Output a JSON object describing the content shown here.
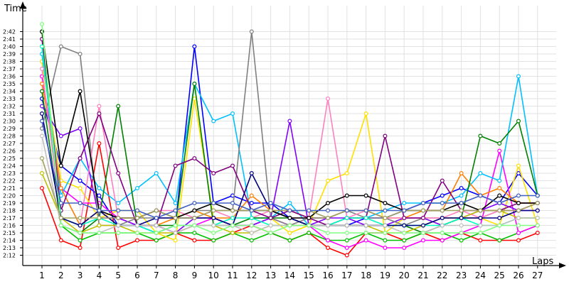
{
  "chart_data": {
    "type": "line",
    "ylabel": "Time",
    "xlabel": "Laps",
    "x": [
      1,
      2,
      3,
      4,
      5,
      6,
      7,
      8,
      9,
      10,
      11,
      12,
      13,
      14,
      15,
      16,
      17,
      18,
      19,
      20,
      21,
      22,
      23,
      24,
      25,
      26,
      27
    ],
    "y_ticks": [
      "2:12",
      "2:13",
      "2:14",
      "2:15",
      "2:16",
      "2:17",
      "2:18",
      "2:19",
      "2:20",
      "2:21",
      "2:22",
      "2:23",
      "2:24",
      "2:25",
      "2:26",
      "2:27",
      "2:28",
      "2:29",
      "2:30",
      "2:31",
      "2:32",
      "2:33",
      "2:34",
      "2:35",
      "2:36",
      "2:37",
      "2:38",
      "2:39",
      "2:40",
      "2:41",
      "2:42"
    ],
    "y_unit": "seconds",
    "ylim": [
      131,
      163
    ],
    "grid": true,
    "legend": "none",
    "series": [
      {
        "color": "#ff0000",
        "values": [
          141,
          134,
          133,
          147,
          133,
          134,
          134,
          135,
          134,
          134,
          135,
          136,
          135,
          134,
          135,
          133,
          132,
          135,
          135,
          134,
          135,
          134,
          135,
          134,
          134,
          134,
          135
        ]
      },
      {
        "color": "#00c000",
        "values": [
          162,
          136,
          134,
          135,
          135,
          135,
          134,
          135,
          135,
          134,
          135,
          134,
          135,
          134,
          135,
          134,
          134,
          135,
          134,
          134,
          135,
          135,
          134,
          135,
          134,
          135,
          136
        ]
      },
      {
        "color": "#0000ff",
        "values": [
          153,
          144,
          142,
          140,
          136,
          136,
          135,
          136,
          160,
          139,
          140,
          139,
          139,
          137,
          136,
          136,
          136,
          137,
          137,
          138,
          139,
          140,
          141,
          140,
          139,
          143,
          140
        ]
      },
      {
        "color": "#ffe000",
        "values": [
          158,
          142,
          141,
          137,
          138,
          138,
          135,
          134,
          153,
          137,
          136,
          136,
          137,
          135,
          136,
          142,
          143,
          151,
          135,
          137,
          137,
          136,
          137,
          137,
          136,
          144,
          136
        ]
      },
      {
        "color": "#ff00ff",
        "values": [
          156,
          141,
          139,
          139,
          137,
          136,
          136,
          135,
          136,
          137,
          136,
          136,
          137,
          136,
          136,
          134,
          133,
          134,
          133,
          133,
          134,
          134,
          135,
          136,
          146,
          135,
          136
        ]
      },
      {
        "color": "#00c0ff",
        "values": [
          159,
          140,
          145,
          141,
          139,
          141,
          143,
          139,
          155,
          150,
          151,
          137,
          137,
          139,
          136,
          136,
          137,
          137,
          138,
          139,
          139,
          139,
          140,
          143,
          142,
          156,
          140
        ]
      },
      {
        "color": "#8000ff",
        "values": [
          152,
          148,
          149,
          137,
          137,
          136,
          136,
          135,
          137,
          137,
          136,
          136,
          137,
          150,
          136,
          137,
          137,
          136,
          136,
          137,
          137,
          136,
          137,
          138,
          139,
          138,
          138
        ]
      },
      {
        "color": "#ff8000",
        "values": [
          155,
          141,
          136,
          138,
          136,
          136,
          136,
          137,
          138,
          137,
          137,
          140,
          138,
          138,
          137,
          137,
          138,
          138,
          137,
          137,
          138,
          138,
          143,
          140,
          141,
          139,
          139
        ]
      },
      {
        "color": "#808080",
        "values": [
          149,
          160,
          159,
          136,
          136,
          137,
          137,
          137,
          138,
          138,
          138,
          162,
          137,
          136,
          137,
          137,
          138,
          137,
          137,
          136,
          137,
          137,
          137,
          137,
          138,
          138,
          139
        ]
      },
      {
        "color": "#ff80c0",
        "values": [
          157,
          137,
          136,
          152,
          137,
          137,
          138,
          138,
          137,
          138,
          137,
          137,
          138,
          137,
          137,
          153,
          137,
          138,
          137,
          137,
          137,
          137,
          138,
          137,
          138,
          138,
          139
        ]
      },
      {
        "color": "#008000",
        "values": [
          154,
          136,
          135,
          137,
          152,
          136,
          136,
          136,
          155,
          136,
          136,
          137,
          137,
          137,
          136,
          136,
          136,
          136,
          136,
          136,
          135,
          136,
          137,
          148,
          147,
          150,
          140
        ]
      },
      {
        "color": "#800080",
        "values": [
          161,
          138,
          145,
          151,
          143,
          136,
          136,
          144,
          145,
          143,
          144,
          138,
          137,
          138,
          137,
          136,
          137,
          137,
          148,
          137,
          137,
          142,
          138,
          138,
          138,
          139,
          139
        ]
      },
      {
        "color": "#00ffc0",
        "values": [
          160,
          137,
          136,
          137,
          136,
          136,
          135,
          136,
          136,
          136,
          137,
          137,
          136,
          136,
          136,
          136,
          137,
          137,
          136,
          136,
          136,
          136,
          137,
          136,
          136,
          137,
          137
        ]
      },
      {
        "color": "#c0c000",
        "values": [
          143,
          137,
          135,
          136,
          136,
          135,
          135,
          135,
          136,
          136,
          135,
          135,
          136,
          136,
          136,
          136,
          136,
          136,
          135,
          135,
          136,
          137,
          137,
          138,
          138,
          137,
          137
        ]
      },
      {
        "color": "#000080",
        "values": [
          151,
          137,
          136,
          138,
          136,
          136,
          137,
          137,
          137,
          137,
          136,
          143,
          138,
          137,
          136,
          136,
          136,
          136,
          136,
          136,
          136,
          137,
          137,
          137,
          137,
          138,
          138
        ]
      },
      {
        "color": "#000000",
        "values": [
          162,
          144,
          154,
          138,
          137,
          137,
          138,
          137,
          138,
          139,
          138,
          138,
          138,
          137,
          137,
          139,
          140,
          140,
          139,
          138,
          138,
          138,
          139,
          138,
          140,
          139,
          139
        ]
      },
      {
        "color": "#c0c0c0",
        "values": [
          148,
          136,
          135,
          135,
          136,
          136,
          136,
          135,
          136,
          136,
          136,
          135,
          136,
          136,
          136,
          136,
          136,
          136,
          136,
          135,
          135,
          136,
          136,
          136,
          136,
          137,
          137
        ]
      },
      {
        "color": "#80ff80",
        "values": [
          163,
          136,
          135,
          135,
          135,
          135,
          135,
          136,
          136,
          135,
          136,
          136,
          135,
          136,
          136,
          135,
          135,
          135,
          135,
          135,
          135,
          135,
          135,
          135,
          136,
          136,
          136
        ]
      },
      {
        "color": "#a0a060",
        "values": [
          145,
          137,
          137,
          137,
          137,
          137,
          138,
          137,
          137,
          138,
          138,
          138,
          138,
          138,
          138,
          137,
          138,
          138,
          137,
          138,
          138,
          138,
          138,
          138,
          138,
          138,
          139
        ]
      },
      {
        "color": "#4060c0",
        "values": [
          150,
          139,
          139,
          138,
          138,
          138,
          137,
          138,
          139,
          139,
          139,
          138,
          139,
          138,
          138,
          138,
          138,
          138,
          138,
          138,
          139,
          139,
          139,
          140,
          139,
          140,
          140
        ]
      }
    ]
  }
}
